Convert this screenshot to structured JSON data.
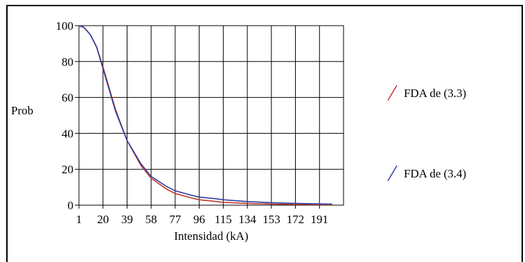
{
  "chart_data": {
    "type": "line",
    "xlabel": "Intensidad (kA)",
    "ylabel": "Prob",
    "xlim": [
      1,
      210
    ],
    "ylim": [
      0,
      100
    ],
    "x_ticks": [
      1,
      20,
      39,
      58,
      77,
      96,
      115,
      134,
      153,
      172,
      191
    ],
    "y_ticks": [
      0,
      20,
      40,
      60,
      80,
      100
    ],
    "grid": true,
    "legend_placement": "right",
    "series": [
      {
        "name": "FDA de (3.3)",
        "color": "#c0392b",
        "x": [
          1,
          5,
          10,
          15,
          20,
          25,
          30,
          39,
          50,
          58,
          70,
          77,
          90,
          96,
          110,
          115,
          134,
          153,
          172,
          191,
          201
        ],
        "y": [
          100,
          99,
          95,
          88,
          77,
          65,
          53,
          36,
          22,
          15,
          9,
          6.5,
          4,
          3,
          2,
          1.6,
          1,
          0.6,
          0.4,
          0.3,
          0.3
        ]
      },
      {
        "name": "FDA de (3.4)",
        "color": "#2c3e9f",
        "x": [
          1,
          5,
          10,
          15,
          20,
          25,
          30,
          39,
          50,
          58,
          70,
          77,
          90,
          96,
          110,
          115,
          134,
          153,
          172,
          191,
          201
        ],
        "y": [
          100,
          99,
          95,
          88,
          76,
          64,
          52,
          36,
          23,
          16,
          10.5,
          8,
          5.5,
          4.5,
          3.5,
          3,
          2,
          1.4,
          1,
          0.7,
          0.6
        ]
      }
    ]
  }
}
